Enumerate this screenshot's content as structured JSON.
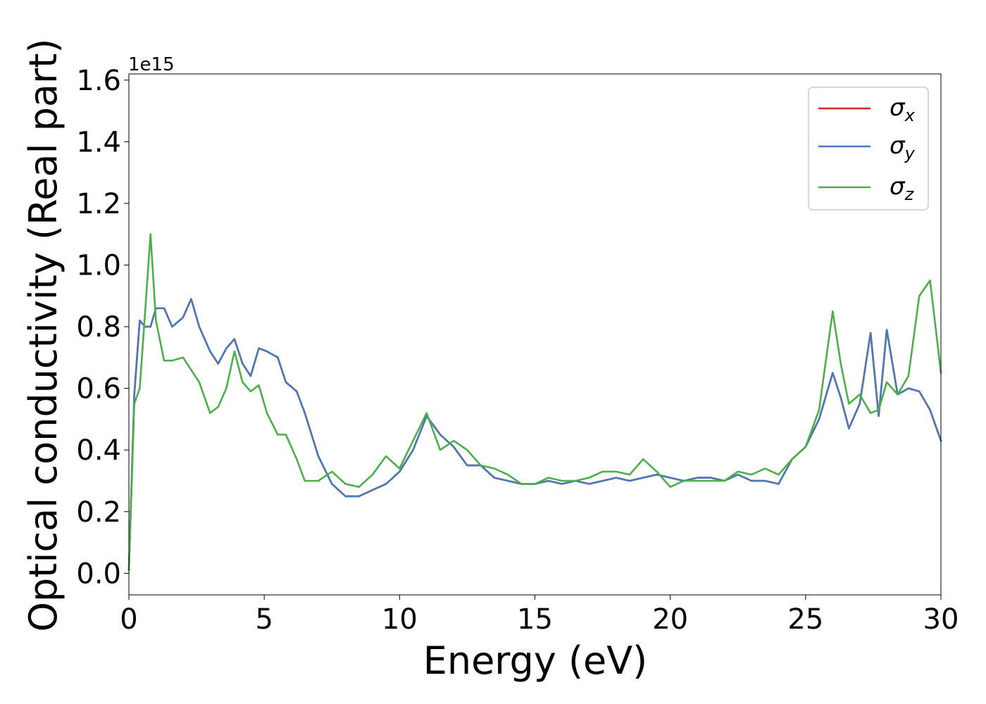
{
  "chart_data": {
    "type": "line",
    "title": "",
    "xlabel": "Energy (eV)",
    "ylabel": "Optical conductivity (Real part)",
    "y_multiplier_label": "1e15",
    "xlim": [
      0,
      30
    ],
    "ylim": [
      -0.07,
      1.62
    ],
    "xticks": [
      0,
      5,
      10,
      15,
      20,
      25,
      30
    ],
    "xtick_labels": [
      "0",
      "5",
      "10",
      "15",
      "20",
      "25",
      "30"
    ],
    "yticks": [
      0.0,
      0.2,
      0.4,
      0.6,
      0.8,
      1.0,
      1.2,
      1.4,
      1.6
    ],
    "ytick_labels": [
      "0.0",
      "0.2",
      "0.4",
      "0.6",
      "0.8",
      "1.0",
      "1.2",
      "1.4",
      "1.6"
    ],
    "grid": false,
    "legend": {
      "placement": "top-right",
      "entries": [
        {
          "base": "σ",
          "sub": "x",
          "color": "#d62728"
        },
        {
          "base": "σ",
          "sub": "y",
          "color": "#4a7ab5"
        },
        {
          "base": "σ",
          "sub": "z",
          "color": "#4daf4a"
        }
      ]
    },
    "x": [
      0,
      0.2,
      0.4,
      0.6,
      0.8,
      1.0,
      1.3,
      1.6,
      2.0,
      2.3,
      2.6,
      3.0,
      3.3,
      3.6,
      3.9,
      4.2,
      4.5,
      4.8,
      5.1,
      5.5,
      5.8,
      6.2,
      6.5,
      7.0,
      7.5,
      8.0,
      8.5,
      9.0,
      9.5,
      10.0,
      10.5,
      11.0,
      11.5,
      12.0,
      12.5,
      13.0,
      13.5,
      14.0,
      14.5,
      15.0,
      15.5,
      16.0,
      16.5,
      17.0,
      17.5,
      18.0,
      18.5,
      19.0,
      19.5,
      20.0,
      20.5,
      21.0,
      21.5,
      22.0,
      22.5,
      23.0,
      23.5,
      24.0,
      24.5,
      25.0,
      25.5,
      26.0,
      26.3,
      26.6,
      27.0,
      27.4,
      27.7,
      28.0,
      28.4,
      28.8,
      29.2,
      29.6,
      30.0
    ],
    "series": [
      {
        "name": "σx",
        "color": "#d62728",
        "values": [
          0.01,
          0.58,
          0.82,
          0.8,
          0.8,
          0.86,
          0.86,
          0.8,
          0.83,
          0.89,
          0.8,
          0.72,
          0.68,
          0.73,
          0.76,
          0.68,
          0.64,
          0.73,
          0.72,
          0.7,
          0.62,
          0.59,
          0.52,
          0.38,
          0.29,
          0.25,
          0.25,
          0.27,
          0.29,
          0.33,
          0.4,
          0.51,
          0.45,
          0.41,
          0.35,
          0.35,
          0.31,
          0.3,
          0.29,
          0.29,
          0.3,
          0.29,
          0.3,
          0.29,
          0.3,
          0.31,
          0.3,
          0.31,
          0.32,
          0.31,
          0.3,
          0.31,
          0.31,
          0.3,
          0.32,
          0.3,
          0.3,
          0.29,
          0.37,
          0.41,
          0.5,
          0.65,
          0.57,
          0.47,
          0.55,
          0.78,
          0.51,
          0.79,
          0.58,
          0.6,
          0.59,
          0.53,
          0.43
        ]
      },
      {
        "name": "σy",
        "color": "#4a7ab5",
        "values": [
          0.01,
          0.58,
          0.82,
          0.8,
          0.8,
          0.86,
          0.86,
          0.8,
          0.83,
          0.89,
          0.8,
          0.72,
          0.68,
          0.73,
          0.76,
          0.68,
          0.64,
          0.73,
          0.72,
          0.7,
          0.62,
          0.59,
          0.52,
          0.38,
          0.29,
          0.25,
          0.25,
          0.27,
          0.29,
          0.33,
          0.4,
          0.51,
          0.45,
          0.41,
          0.35,
          0.35,
          0.31,
          0.3,
          0.29,
          0.29,
          0.3,
          0.29,
          0.3,
          0.29,
          0.3,
          0.31,
          0.3,
          0.31,
          0.32,
          0.31,
          0.3,
          0.31,
          0.31,
          0.3,
          0.32,
          0.3,
          0.3,
          0.29,
          0.37,
          0.41,
          0.5,
          0.65,
          0.57,
          0.47,
          0.55,
          0.78,
          0.51,
          0.79,
          0.58,
          0.6,
          0.59,
          0.53,
          0.43
        ]
      },
      {
        "name": "σz",
        "color": "#4daf4a",
        "values": [
          0.01,
          0.55,
          0.6,
          0.85,
          1.1,
          0.82,
          0.69,
          0.69,
          0.7,
          0.66,
          0.62,
          0.52,
          0.54,
          0.6,
          0.72,
          0.62,
          0.59,
          0.61,
          0.52,
          0.45,
          0.45,
          0.37,
          0.3,
          0.3,
          0.33,
          0.29,
          0.28,
          0.32,
          0.38,
          0.34,
          0.43,
          0.52,
          0.4,
          0.43,
          0.4,
          0.35,
          0.34,
          0.32,
          0.29,
          0.29,
          0.31,
          0.3,
          0.3,
          0.31,
          0.33,
          0.33,
          0.32,
          0.37,
          0.33,
          0.28,
          0.3,
          0.3,
          0.3,
          0.3,
          0.33,
          0.32,
          0.34,
          0.32,
          0.37,
          0.41,
          0.53,
          0.85,
          0.68,
          0.55,
          0.58,
          0.52,
          0.53,
          0.62,
          0.58,
          0.64,
          0.9,
          0.95,
          0.65
        ]
      }
    ]
  }
}
